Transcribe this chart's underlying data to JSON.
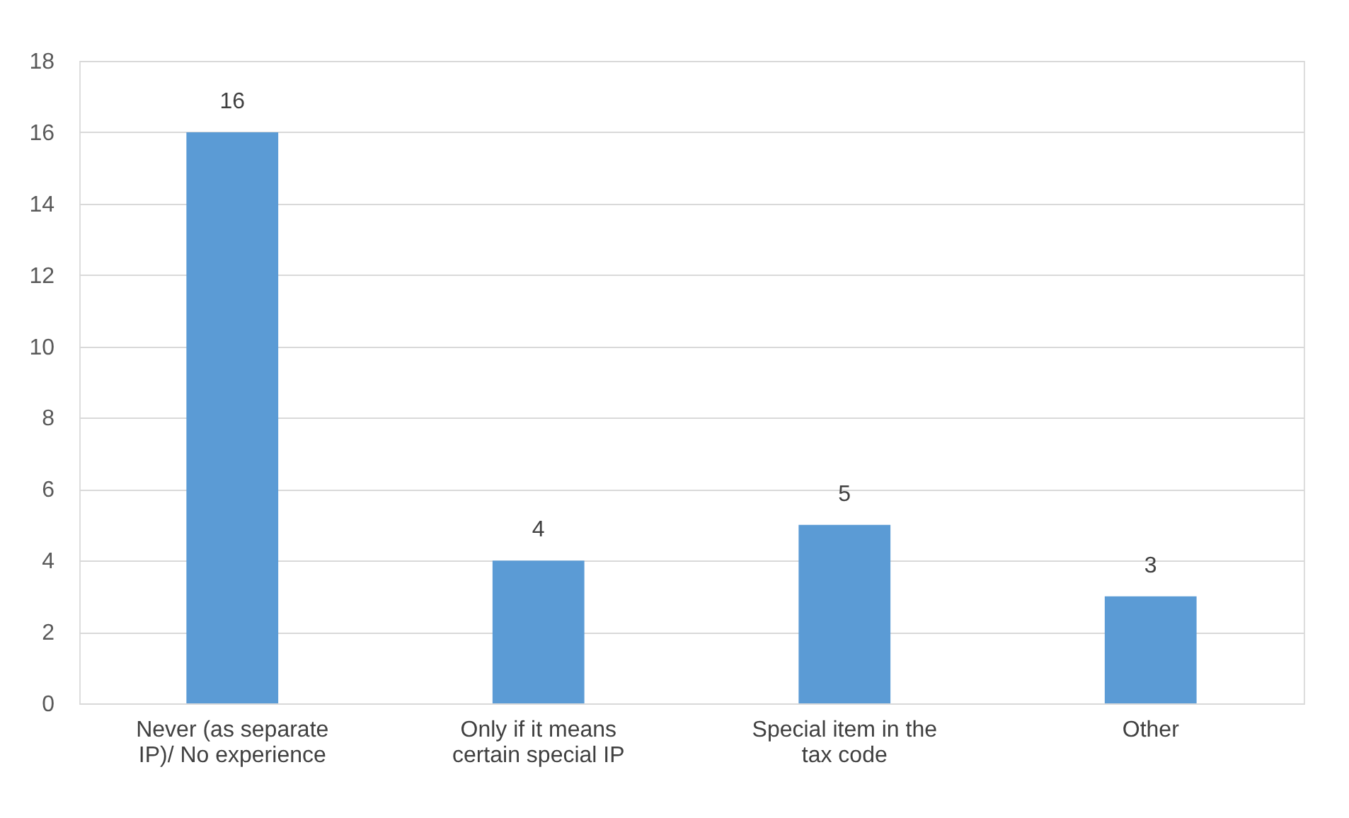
{
  "chart_data": {
    "type": "bar",
    "categories": [
      "Never (as separate IP)/ No experience",
      "Only if it means certain special IP",
      "Special item in the tax code",
      "Other"
    ],
    "values": [
      16,
      4,
      5,
      3
    ],
    "color": "#5b9bd5",
    "ylim": [
      0,
      18
    ],
    "yticks": [
      0,
      2,
      4,
      6,
      8,
      10,
      12,
      14,
      16,
      18
    ],
    "grid": "y",
    "data_labels": true
  }
}
